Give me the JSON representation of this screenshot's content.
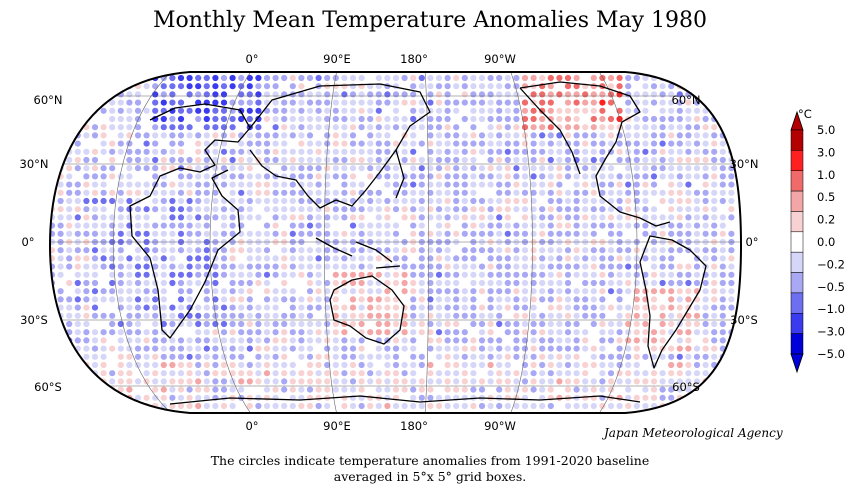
{
  "title": "Monthly Mean Temperature Anomalies May 1980",
  "agency": "Japan Meteorological Agency",
  "caption": {
    "line1": "The circles indicate temperature anomalies from 1991-2020 baseline",
    "line2": "averaged in 5°x 5° grid boxes."
  },
  "longitude_labels": [
    "0°",
    "90°E",
    "180°",
    "90°W"
  ],
  "latitude_labels": [
    "60°N",
    "30°N",
    "0°",
    "30°S",
    "60°S"
  ],
  "legend": {
    "unit": "°C",
    "ticks": [
      "5.0",
      "3.0",
      "1.0",
      "0.5",
      "0.2",
      "0.0",
      "−0.2",
      "−0.5",
      "−1.0",
      "−3.0",
      "−5.0"
    ],
    "colors": [
      "#b30000",
      "#ff2020",
      "#f06a6a",
      "#f4a6a6",
      "#f8d2d2",
      "#ffffff",
      "#d6d6f8",
      "#a8a8f4",
      "#6e6ef0",
      "#3a3aee",
      "#0000d8"
    ]
  }
}
